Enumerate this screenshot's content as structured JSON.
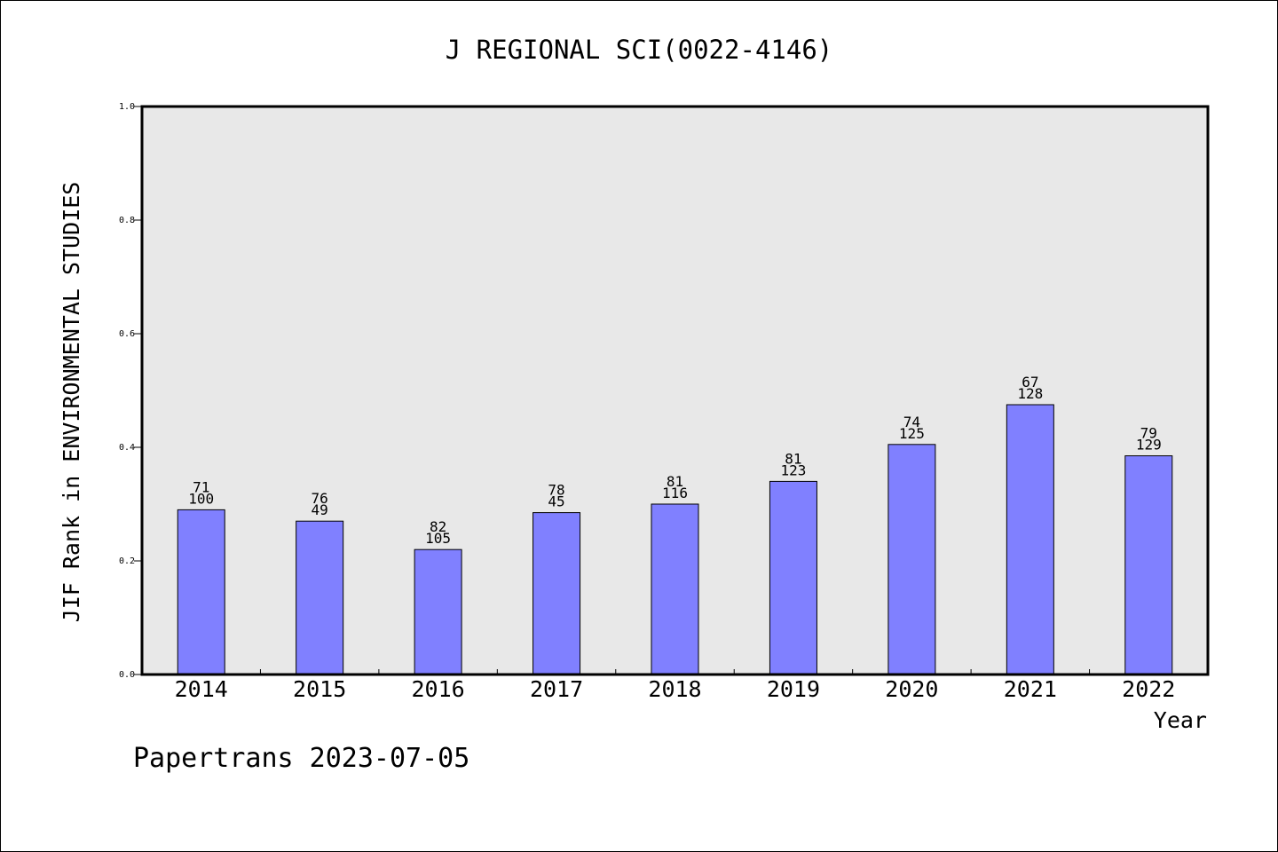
{
  "chart_data": {
    "type": "bar",
    "title": "J REGIONAL SCI(0022-4146)",
    "xlabel": "Year",
    "ylabel": "JIF Rank in ENVIRONMENTAL STUDIES",
    "ylim": [
      0.0,
      1.0
    ],
    "yticks": [
      "0.0",
      "0.2",
      "0.4",
      "0.6",
      "0.8",
      "1.0"
    ],
    "categories": [
      "2014",
      "2015",
      "2016",
      "2017",
      "2018",
      "2019",
      "2020",
      "2021",
      "2022"
    ],
    "values": [
      0.29,
      0.27,
      0.22,
      0.285,
      0.3,
      0.34,
      0.405,
      0.475,
      0.385
    ],
    "labels_top": [
      "71",
      "76",
      "82",
      "78",
      "81",
      "81",
      "74",
      "67",
      "79"
    ],
    "labels_bottom": [
      "100",
      "49",
      "105",
      "45",
      "116",
      "123",
      "125",
      "128",
      "129"
    ],
    "grid": false,
    "colors": {
      "bar_fill": "#8080ff",
      "plot_background": "#e8e8e8"
    }
  },
  "footer": "Papertrans 2023-07-05"
}
